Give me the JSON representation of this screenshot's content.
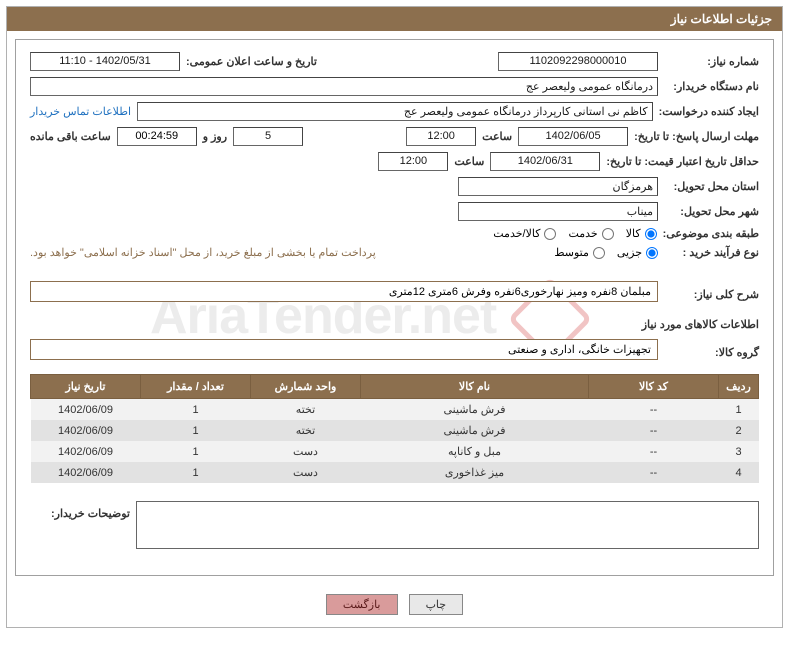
{
  "header": {
    "title": "جزئیات اطلاعات نیاز"
  },
  "fields": {
    "need_no_label": "شماره نیاز:",
    "need_no": "1102092298000010",
    "announce_label": "تاریخ و ساعت اعلان عمومی:",
    "announce": "1402/05/31 - 11:10",
    "buyer_org_label": "نام دستگاه خریدار:",
    "buyer_org": "درمانگاه عمومی ولیعصر عج",
    "requester_label": "ایجاد کننده درخواست:",
    "requester": "کاظم نی استانی کارپرداز درمانگاه عمومی ولیعصر عج",
    "contact_link": "اطلاعات تماس خریدار",
    "deadline_label": "مهلت ارسال پاسخ: تا تاریخ:",
    "deadline_date": "1402/06/05",
    "time_label": "ساعت",
    "deadline_time": "12:00",
    "days": "5",
    "days_label": "روز و",
    "countdown": "00:24:59",
    "remain_label": "ساعت باقی مانده",
    "validity_label": "حداقل تاریخ اعتبار قیمت: تا تاریخ:",
    "validity_date": "1402/06/31",
    "validity_time": "12:00",
    "province_label": "استان محل تحویل:",
    "province": "هرمزگان",
    "city_label": "شهر محل تحویل:",
    "city": "میناب",
    "category_label": "طبقه بندی موضوعی:",
    "cat_kala": "کالا",
    "cat_khadamat": "خدمت",
    "cat_both": "کالا/خدمت",
    "buytype_label": "نوع فرآیند خرید :",
    "bt_partial": "جزیی",
    "bt_medium": "متوسط",
    "pay_note": "پرداخت تمام یا بخشی از مبلغ خرید، از محل \"اسناد خزانه اسلامی\" خواهد بود.",
    "summary_label": "شرح کلی نیاز:",
    "summary": "مبلمان 8نفره ومیز نهارخوری6نفره وفرش 6متری 12متری",
    "goods_section": "اطلاعات کالاهای مورد نیاز",
    "group_label": "گروه کالا:",
    "group": "تجهیزات خانگی، اداری و صنعتی",
    "buyer_note_label": "توضیحات خریدار:"
  },
  "table": {
    "headers": [
      "ردیف",
      "کد کالا",
      "نام کالا",
      "واحد شمارش",
      "تعداد / مقدار",
      "تاریخ نیاز"
    ],
    "rows": [
      [
        "1",
        "--",
        "فرش ماشینی",
        "تخته",
        "1",
        "1402/06/09"
      ],
      [
        "2",
        "--",
        "فرش ماشینی",
        "تخته",
        "1",
        "1402/06/09"
      ],
      [
        "3",
        "--",
        "مبل و کاناپه",
        "دست",
        "1",
        "1402/06/09"
      ],
      [
        "4",
        "--",
        "میز غذاخوری",
        "دست",
        "1",
        "1402/06/09"
      ]
    ],
    "col_widths": [
      "40px",
      "130px",
      "auto",
      "110px",
      "110px",
      "110px"
    ]
  },
  "buttons": {
    "print": "چاپ",
    "back": "بازگشت"
  },
  "colors": {
    "brand": "#8c6f4e",
    "border": "#a0a0a0",
    "link": "#1e70bf",
    "back_btn": "#d99b9b"
  }
}
